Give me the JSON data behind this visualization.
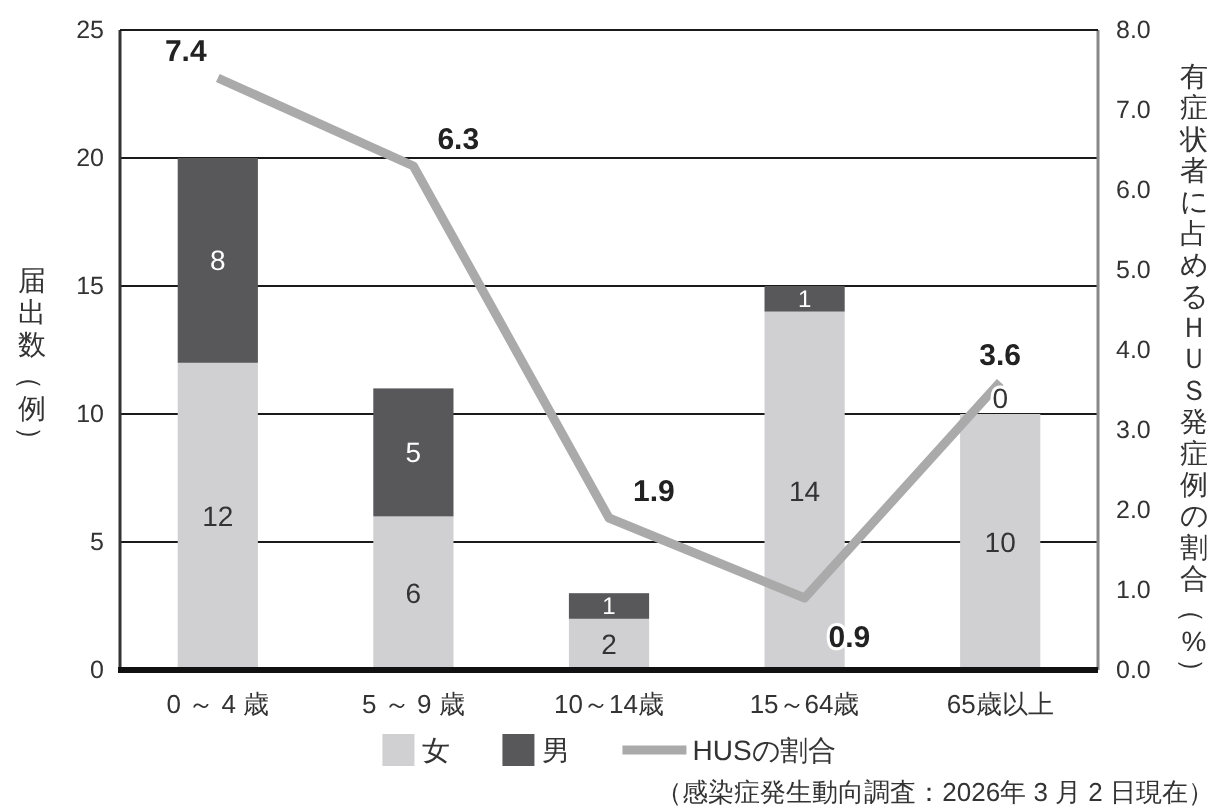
{
  "chart_data": {
    "type": "bar",
    "stacked": true,
    "categories": [
      "0 ～ 4 歳",
      "5 ～ 9 歳",
      "10～14歳",
      "15～64歳",
      "65歳以上"
    ],
    "series": [
      {
        "name": "女",
        "color": "#d0d0d2",
        "values": [
          12,
          6,
          2,
          14,
          10
        ]
      },
      {
        "name": "男",
        "color": "#58585a",
        "values": [
          8,
          5,
          1,
          1,
          0
        ]
      },
      {
        "name": "HUSの割合",
        "type": "line",
        "axis": "y2",
        "color": "#aaaaaa",
        "values": [
          7.4,
          6.3,
          1.9,
          0.9,
          3.6
        ]
      }
    ],
    "ylabel": "届出数（例）",
    "y2label": "有症状者に占めるＨＵＳ発症例の割合（%）",
    "ylim": [
      0,
      25
    ],
    "yticks": [
      0,
      5,
      10,
      15,
      20,
      25
    ],
    "y2lim": [
      0,
      8
    ],
    "y2ticks": [
      {
        "value": 0,
        "label": "0.0"
      },
      {
        "value": 1,
        "label": "1.0"
      },
      {
        "value": 2,
        "label": "2.0"
      },
      {
        "value": 3,
        "label": "3.0"
      },
      {
        "value": 4,
        "label": "4.0"
      },
      {
        "value": 5,
        "label": "5.0"
      },
      {
        "value": 6,
        "label": "6.0"
      },
      {
        "value": 7,
        "label": "7.0"
      },
      {
        "value": 8,
        "label": "8.0"
      }
    ],
    "grid": "y",
    "legend": "bottom",
    "data_labels": true,
    "annotations": [
      "（感染症発生動向調査：2026年 3 月 2 日現在）"
    ]
  }
}
